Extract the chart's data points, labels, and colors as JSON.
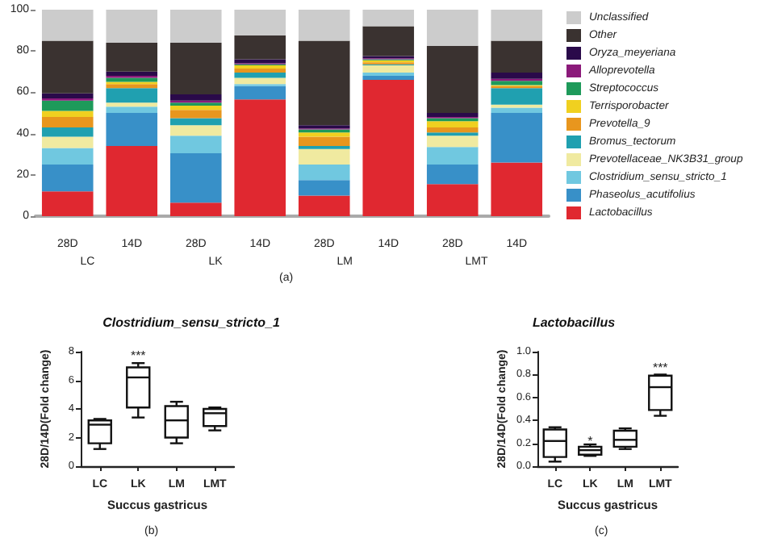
{
  "chart_data": [
    {
      "type": "bar",
      "stacked": true,
      "categories": [
        "28D",
        "14D",
        "28D",
        "14D",
        "28D",
        "14D",
        "28D",
        "14D"
      ],
      "ylim": [
        0,
        100
      ],
      "yticks": [
        0,
        20,
        40,
        60,
        80,
        100
      ],
      "grid": false,
      "legend": "right",
      "annotations": [
        "LC",
        "LK",
        "LM",
        "LMT",
        "(a)"
      ],
      "series": [
        {
          "name": "Lactobacillus",
          "color": "#e02830",
          "values": [
            12,
            34,
            6.5,
            56.5,
            10,
            66,
            15.5,
            26
          ]
        },
        {
          "name": "Phaseolus_acutifolius",
          "color": "#3890c8",
          "values": [
            13,
            16,
            24,
            6.5,
            7.5,
            2,
            9.5,
            24
          ]
        },
        {
          "name": "Clostridium_sensu_stricto_1",
          "color": "#70c8e0",
          "values": [
            8,
            3,
            8.5,
            1,
            7.5,
            1.5,
            8.5,
            2.5
          ]
        },
        {
          "name": "Prevotellaceae_NK3B31_group",
          "color": "#f0eaa0",
          "values": [
            5.5,
            2,
            5,
            3,
            7.5,
            3.5,
            5.5,
            1.5
          ]
        },
        {
          "name": "Bromus_tectorum",
          "color": "#20a0b0",
          "values": [
            4.5,
            7,
            3.5,
            2.5,
            1.5,
            0.5,
            1.5,
            8
          ]
        },
        {
          "name": "Prevotella_9",
          "color": "#e8961e",
          "values": [
            5,
            2,
            4,
            2,
            4.5,
            1,
            2.5,
            1
          ]
        },
        {
          "name": "Terrisporobacter",
          "color": "#f0d020",
          "values": [
            3,
            1,
            2,
            1.5,
            2,
            1,
            3,
            0.5
          ]
        },
        {
          "name": "Streptococcus",
          "color": "#1e9a5a",
          "values": [
            5,
            2,
            1.5,
            0.5,
            1.5,
            0.5,
            1.5,
            2
          ]
        },
        {
          "name": "Alloprevotella",
          "color": "#8b1a7a",
          "values": [
            1,
            1,
            1,
            0.5,
            0.5,
            0.5,
            0.5,
            1
          ]
        },
        {
          "name": "Oryza_meyeriana",
          "color": "#2a0a4a",
          "values": [
            2.5,
            2,
            3,
            2,
            1.5,
            1,
            2,
            3
          ]
        },
        {
          "name": "Other",
          "color": "#3a3230",
          "values": [
            25.5,
            14,
            25,
            11.5,
            41,
            14.5,
            32.5,
            15.5
          ]
        },
        {
          "name": "Unclassified",
          "color": "#cccccc",
          "values": [
            15,
            16,
            16,
            12.5,
            15,
            8,
            17.5,
            15
          ]
        }
      ]
    },
    {
      "type": "box",
      "title": "Clostridium_sensu_stricto_1",
      "xlabel": "Succus gastricus",
      "ylabel": "28D/14D(Fold change)",
      "categories": [
        "LC",
        "LK",
        "LM",
        "LMT"
      ],
      "ylim": [
        0,
        8
      ],
      "yticks": [
        0,
        2,
        4,
        6,
        8
      ],
      "grid": false,
      "boxes": [
        {
          "low": 1.2,
          "q1": 1.6,
          "median": 2.9,
          "q3": 3.2,
          "high": 3.3
        },
        {
          "low": 3.4,
          "q1": 4.1,
          "median": 6.2,
          "q3": 6.9,
          "high": 7.2
        },
        {
          "low": 1.6,
          "q1": 2.0,
          "median": 3.2,
          "q3": 4.2,
          "high": 4.5
        },
        {
          "low": 2.5,
          "q1": 2.8,
          "median": 3.7,
          "q3": 4.0,
          "high": 4.1
        }
      ],
      "annotations": [
        {
          "text": "***",
          "x": "LK",
          "y": 7.7
        },
        "(b)"
      ]
    },
    {
      "type": "box",
      "title": "Lactobacillus",
      "xlabel": "Succus gastricus",
      "ylabel": "28D/14D(Fold change)",
      "categories": [
        "LC",
        "LK",
        "LM",
        "LMT"
      ],
      "ylim": [
        0,
        1
      ],
      "yticks": [
        {
          "value": 0,
          "label": "0.0"
        },
        0.2,
        0.4,
        0.6,
        0.8,
        {
          "value": 1,
          "label": "1.0"
        }
      ],
      "grid": false,
      "boxes": [
        {
          "low": 0.04,
          "q1": 0.08,
          "median": 0.22,
          "q3": 0.32,
          "high": 0.34
        },
        {
          "low": 0.09,
          "q1": 0.1,
          "median": 0.14,
          "q3": 0.17,
          "high": 0.19
        },
        {
          "low": 0.15,
          "q1": 0.17,
          "median": 0.23,
          "q3": 0.31,
          "high": 0.33
        },
        {
          "low": 0.44,
          "q1": 0.49,
          "median": 0.69,
          "q3": 0.79,
          "high": 0.8
        }
      ],
      "annotations": [
        {
          "text": "*",
          "x": "LK",
          "y": 0.22
        },
        {
          "text": "***",
          "x": "LMT",
          "y": 0.86
        },
        "(c)"
      ]
    }
  ]
}
